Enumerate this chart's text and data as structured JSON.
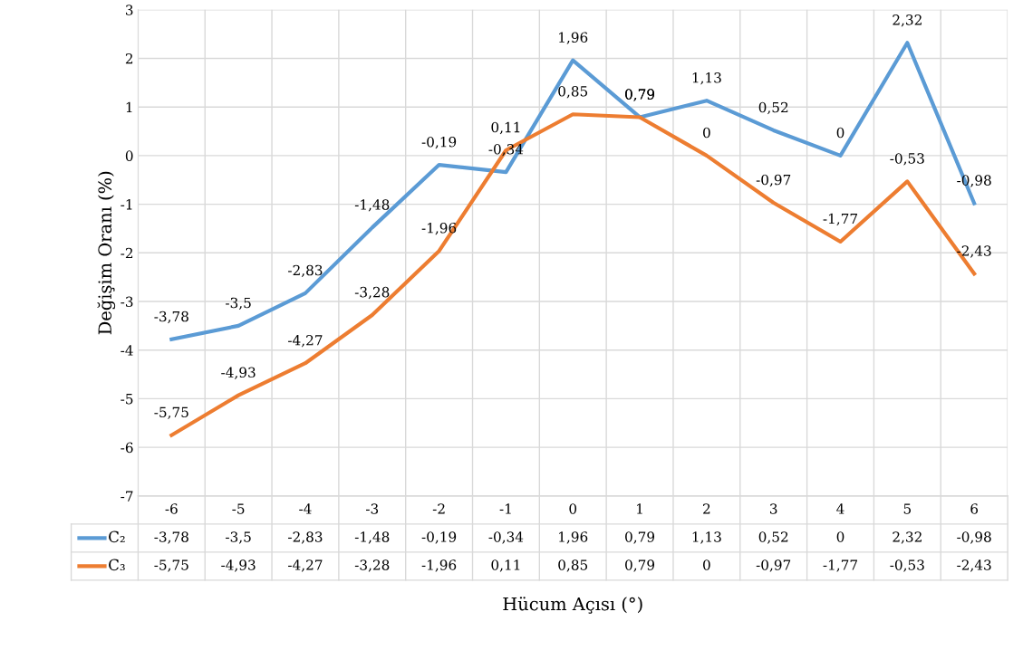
{
  "chart_data": {
    "type": "line",
    "xlabel": "Hücum Açısı (°)",
    "ylabel": "Değişim Oranı (%)",
    "categories": [
      "-6",
      "-5",
      "-4",
      "-3",
      "-2",
      "-1",
      "0",
      "1",
      "2",
      "3",
      "4",
      "5",
      "6"
    ],
    "series": [
      {
        "name": "C₂",
        "color": "#5b9bd5",
        "values": [
          -3.78,
          -3.5,
          -2.83,
          -1.48,
          -0.19,
          -0.34,
          1.96,
          0.79,
          1.13,
          0.52,
          0,
          2.32,
          -0.98
        ],
        "value_labels": [
          "-3,78",
          "-3,5",
          "-2,83",
          "-1,48",
          "-0,19",
          "-0,34",
          "1,96",
          "0,79",
          "1,13",
          "0,52",
          "0",
          "2,32",
          "-0,98"
        ]
      },
      {
        "name": "C₃",
        "color": "#ed7d31",
        "values": [
          -5.75,
          -4.93,
          -4.27,
          -3.28,
          -1.96,
          0.11,
          0.85,
          0.79,
          0,
          -0.97,
          -1.77,
          -0.53,
          -2.43
        ],
        "value_labels": [
          "-5,75",
          "-4,93",
          "-4,27",
          "-3,28",
          "-1,96",
          "0,11",
          "0,85",
          "0,79",
          "0",
          "-0,97",
          "-1,77",
          "-0,53",
          "-2,43"
        ]
      }
    ],
    "ylim": [
      -7,
      3
    ],
    "yticks": [
      -7,
      -6,
      -5,
      -4,
      -3,
      -2,
      -1,
      0,
      1,
      2,
      3
    ],
    "grid": true,
    "legend": "bottom",
    "marker": "none",
    "line_style": "solid"
  }
}
